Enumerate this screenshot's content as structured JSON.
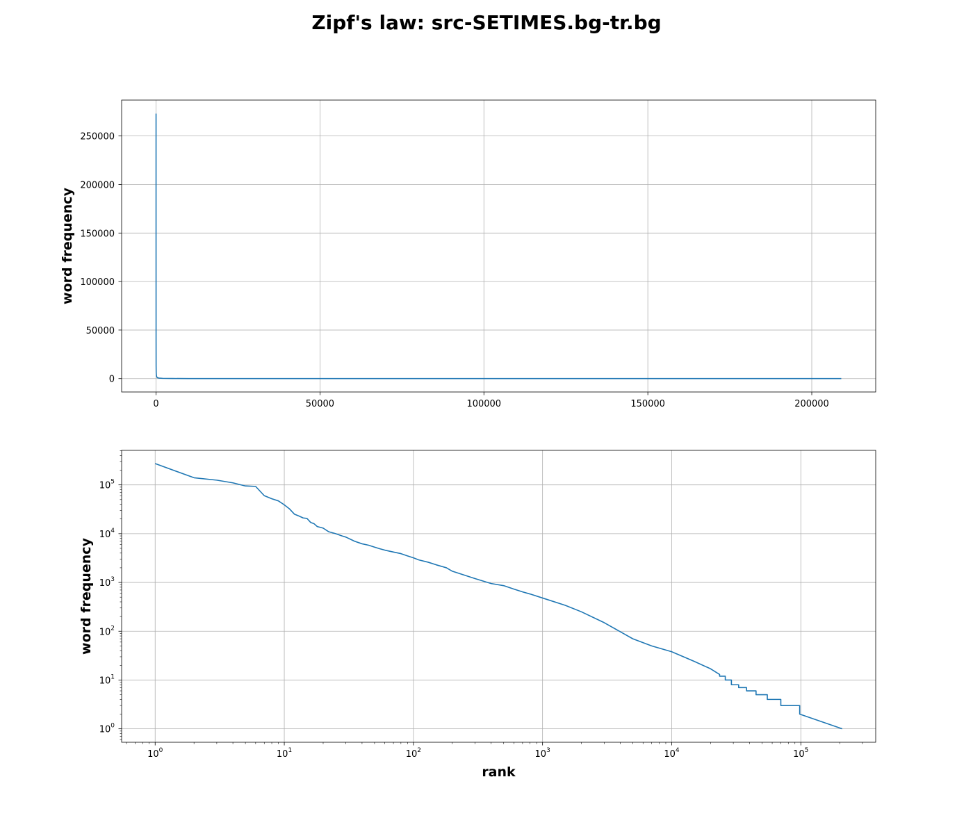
{
  "figure": {
    "title": "Zipf's law: src-SETIMES.bg-tr.bg"
  },
  "chart_data": [
    {
      "type": "line",
      "scale": "linear",
      "xlabel": "",
      "ylabel": "word frequency",
      "xlim": [
        -10500,
        219500
      ],
      "ylim": [
        -13800,
        287000
      ],
      "grid": true,
      "line_color": "#1f77b4",
      "xticks": [
        0,
        50000,
        100000,
        150000,
        200000
      ],
      "xtick_labels": [
        "0",
        "50000",
        "100000",
        "150000",
        "200000"
      ],
      "yticks": [
        0,
        50000,
        100000,
        150000,
        200000,
        250000
      ],
      "ytick_labels": [
        "0",
        "50000",
        "100000",
        "150000",
        "200000",
        "250000"
      ],
      "series": [
        {
          "x": [
            1,
            2,
            3,
            5,
            10,
            20,
            50,
            100,
            200,
            500,
            1000,
            2000,
            5000,
            10000,
            30000,
            60000,
            100000,
            150000,
            209000
          ],
          "values": [
            273000,
            140000,
            120000,
            95000,
            38000,
            13000,
            5500,
            3500,
            1700,
            800,
            480,
            250,
            100,
            38,
            9,
            3,
            1,
            1,
            1
          ]
        }
      ]
    },
    {
      "type": "line",
      "scale": "log",
      "xlabel": "rank",
      "ylabel": "word frequency",
      "xlim": [
        0.55,
        380000
      ],
      "ylim": [
        0.53,
        510000
      ],
      "grid": true,
      "line_color": "#1f77b4",
      "xticks": [
        1,
        10,
        100,
        1000,
        10000,
        100000
      ],
      "xtick_labels": [
        [
          "10",
          "0"
        ],
        [
          "10",
          "1"
        ],
        [
          "10",
          "2"
        ],
        [
          "10",
          "3"
        ],
        [
          "10",
          "4"
        ],
        [
          "10",
          "5"
        ]
      ],
      "yticks": [
        1,
        10,
        100,
        1000,
        10000,
        100000
      ],
      "ytick_labels": [
        [
          "10",
          "0"
        ],
        [
          "10",
          "1"
        ],
        [
          "10",
          "2"
        ],
        [
          "10",
          "3"
        ],
        [
          "10",
          "4"
        ],
        [
          "10",
          "5"
        ]
      ],
      "series": [
        {
          "x": [
            1,
            2,
            3,
            4,
            5,
            6,
            7,
            8,
            9,
            10,
            11,
            12,
            13,
            14,
            15,
            16,
            17,
            18,
            20,
            22,
            25,
            28,
            30,
            35,
            40,
            45,
            50,
            55,
            60,
            70,
            80,
            90,
            100,
            110,
            130,
            150,
            180,
            200,
            300,
            400,
            500,
            600,
            700,
            800,
            1000,
            1500,
            2000,
            3000,
            5000,
            7000,
            10000,
            15000,
            20000,
            23500,
            23500,
            26000,
            26000,
            29000,
            29000,
            33000,
            33000,
            38000,
            38000,
            45000,
            45000,
            55000,
            55000,
            70000,
            70000,
            98000,
            98000,
            209000
          ],
          "values": [
            273000,
            140000,
            125000,
            110000,
            95000,
            93000,
            60000,
            52000,
            47000,
            39000,
            32000,
            25000,
            23000,
            21000,
            20500,
            17000,
            16000,
            14000,
            13000,
            11000,
            10000,
            9000,
            8500,
            7000,
            6200,
            5800,
            5300,
            4900,
            4600,
            4200,
            3900,
            3500,
            3200,
            2900,
            2600,
            2300,
            2000,
            1700,
            1200,
            950,
            860,
            730,
            640,
            580,
            480,
            340,
            250,
            150,
            70,
            50,
            38,
            24,
            17,
            13,
            12,
            12,
            10,
            10,
            8,
            8,
            7,
            7,
            6,
            6,
            5,
            5,
            4,
            4,
            3,
            3,
            2,
            1
          ]
        }
      ]
    }
  ]
}
